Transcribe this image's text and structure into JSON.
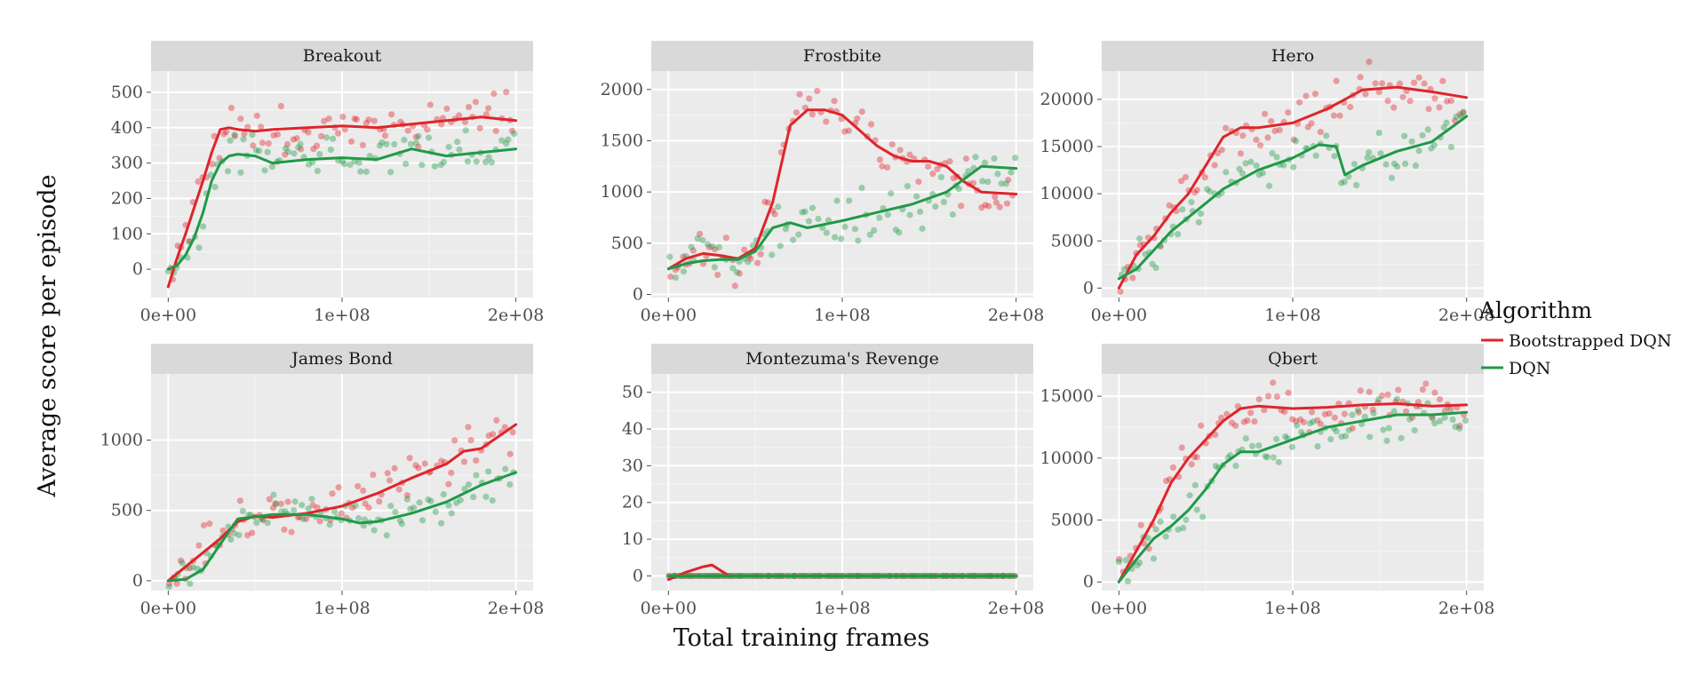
{
  "chart_data": {
    "type": "scatter",
    "xlabel": "Total training frames",
    "ylabel": "Average score per episode",
    "legend": {
      "title": "Algorithm",
      "position": "right",
      "entries": [
        {
          "label": "Bootstrapped DQN",
          "color": "#e0242b"
        },
        {
          "label": "DQN",
          "color": "#1f9a47"
        }
      ]
    },
    "x_tick_labels": [
      "0e+00",
      "1e+08",
      "2e+08"
    ],
    "x_range": [
      0,
      200000000
    ],
    "grid": true,
    "facets": [
      {
        "title": "Breakout",
        "ylim": [
          -80,
          560
        ],
        "y_ticks": [
          0,
          100,
          200,
          300,
          400,
          500
        ],
        "y_tick_labels": [
          "0",
          "100",
          "200",
          "300",
          "400",
          "500"
        ],
        "series": [
          {
            "name": "Bootstrapped DQN",
            "x": [
              0,
              5000000,
              10000000,
              20000000,
              25000000,
              30000000,
              35000000,
              40000000,
              50000000,
              60000000,
              80000000,
              100000000,
              120000000,
              140000000,
              160000000,
              180000000,
              200000000
            ],
            "y": [
              -50,
              30,
              100,
              250,
              330,
              395,
              400,
              395,
              390,
              395,
              400,
              405,
              400,
              410,
              420,
              430,
              420
            ]
          },
          {
            "name": "DQN",
            "x": [
              0,
              5000000,
              10000000,
              15000000,
              20000000,
              25000000,
              30000000,
              35000000,
              40000000,
              50000000,
              60000000,
              80000000,
              100000000,
              120000000,
              140000000,
              160000000,
              180000000,
              200000000
            ],
            "y": [
              0,
              10,
              40,
              90,
              160,
              250,
              300,
              320,
              325,
              320,
              300,
              310,
              315,
              310,
              340,
              320,
              330,
              340
            ]
          }
        ]
      },
      {
        "title": "Frostbite",
        "ylim": [
          -30,
          2180
        ],
        "y_ticks": [
          0,
          500,
          1000,
          1500,
          2000
        ],
        "y_tick_labels": [
          "0",
          "500",
          "1000",
          "1500",
          "2000"
        ],
        "series": [
          {
            "name": "Bootstrapped DQN",
            "x": [
              0,
              10000000,
              20000000,
              30000000,
              40000000,
              50000000,
              60000000,
              70000000,
              80000000,
              90000000,
              100000000,
              110000000,
              120000000,
              130000000,
              140000000,
              150000000,
              160000000,
              170000000,
              180000000,
              200000000
            ],
            "y": [
              250,
              350,
              400,
              380,
              350,
              450,
              900,
              1650,
              1800,
              1800,
              1750,
              1600,
              1450,
              1350,
              1300,
              1300,
              1250,
              1100,
              1000,
              980
            ]
          },
          {
            "name": "DQN",
            "x": [
              0,
              10000000,
              20000000,
              30000000,
              40000000,
              50000000,
              60000000,
              70000000,
              80000000,
              100000000,
              120000000,
              140000000,
              160000000,
              180000000,
              200000000
            ],
            "y": [
              250,
              300,
              330,
              340,
              340,
              420,
              650,
              700,
              650,
              720,
              800,
              880,
              1000,
              1250,
              1230
            ]
          }
        ]
      },
      {
        "title": "Hero",
        "ylim": [
          -1000,
          23000
        ],
        "y_ticks": [
          0,
          5000,
          10000,
          15000,
          20000
        ],
        "y_tick_labels": [
          "0",
          "5000",
          "10000",
          "15000",
          "20000"
        ],
        "series": [
          {
            "name": "Bootstrapped DQN",
            "x": [
              0,
              10000000,
              20000000,
              30000000,
              40000000,
              50000000,
              60000000,
              70000000,
              80000000,
              100000000,
              120000000,
              140000000,
              160000000,
              180000000,
              200000000
            ],
            "y": [
              0,
              3500,
              5500,
              8000,
              10000,
              13000,
              16000,
              17000,
              17000,
              17500,
              19000,
              21000,
              21300,
              20800,
              20200
            ]
          },
          {
            "name": "DQN",
            "x": [
              0,
              10000000,
              20000000,
              30000000,
              40000000,
              50000000,
              60000000,
              70000000,
              80000000,
              100000000,
              115000000,
              125000000,
              130000000,
              140000000,
              160000000,
              180000000,
              200000000
            ],
            "y": [
              1000,
              2000,
              4000,
              6000,
              7500,
              9000,
              10500,
              11500,
              12500,
              13800,
              15200,
              15000,
              12000,
              13000,
              14500,
              15500,
              18200
            ]
          }
        ]
      },
      {
        "title": "James Bond",
        "ylim": [
          -70,
          1470
        ],
        "y_ticks": [
          0,
          500,
          1000
        ],
        "y_tick_labels": [
          "0",
          "500",
          "1000"
        ],
        "series": [
          {
            "name": "Bootstrapped DQN",
            "x": [
              0,
              10000000,
              20000000,
              30000000,
              40000000,
              50000000,
              60000000,
              80000000,
              100000000,
              120000000,
              140000000,
              160000000,
              170000000,
              180000000,
              200000000
            ],
            "y": [
              0,
              100,
              200,
              300,
              420,
              460,
              450,
              480,
              530,
              620,
              730,
              830,
              920,
              940,
              1110
            ]
          },
          {
            "name": "DQN",
            "x": [
              0,
              10000000,
              20000000,
              30000000,
              40000000,
              60000000,
              80000000,
              100000000,
              110000000,
              120000000,
              140000000,
              160000000,
              180000000,
              200000000
            ],
            "y": [
              0,
              10,
              80,
              260,
              440,
              470,
              470,
              440,
              410,
              420,
              480,
              560,
              680,
              770
            ]
          }
        ]
      },
      {
        "title": "Montezuma's Revenge",
        "ylim": [
          -4,
          55
        ],
        "y_ticks": [
          0,
          10,
          20,
          30,
          40,
          50
        ],
        "y_tick_labels": [
          "0",
          "10",
          "20",
          "30",
          "40",
          "50"
        ],
        "series": [
          {
            "name": "Bootstrapped DQN",
            "x": [
              0,
              10000000,
              20000000,
              25000000,
              30000000,
              35000000,
              200000000
            ],
            "y": [
              -1,
              1,
              2.5,
              3,
              1.5,
              0,
              0
            ]
          },
          {
            "name": "DQN",
            "x": [
              0,
              100000000,
              200000000
            ],
            "y": [
              0,
              0,
              0
            ]
          }
        ]
      },
      {
        "title": "Qbert",
        "ylim": [
          -700,
          16800
        ],
        "y_ticks": [
          0,
          5000,
          10000,
          15000
        ],
        "y_tick_labels": [
          "0",
          "5000",
          "10000",
          "15000"
        ],
        "series": [
          {
            "name": "Bootstrapped DQN",
            "x": [
              0,
              10000000,
              20000000,
              30000000,
              40000000,
              50000000,
              60000000,
              70000000,
              80000000,
              100000000,
              120000000,
              140000000,
              160000000,
              180000000,
              200000000
            ],
            "y": [
              0,
              2500,
              5000,
              8000,
              10000,
              11500,
              13000,
              14000,
              14200,
              14000,
              14100,
              14300,
              14400,
              14200,
              14300
            ]
          },
          {
            "name": "DQN",
            "x": [
              0,
              10000000,
              20000000,
              30000000,
              40000000,
              50000000,
              60000000,
              70000000,
              80000000,
              100000000,
              120000000,
              140000000,
              160000000,
              180000000,
              200000000
            ],
            "y": [
              0,
              1800,
              3500,
              4500,
              5800,
              7500,
              9500,
              10500,
              10500,
              11500,
              12500,
              13000,
              13500,
              13500,
              13700
            ]
          }
        ]
      }
    ]
  }
}
